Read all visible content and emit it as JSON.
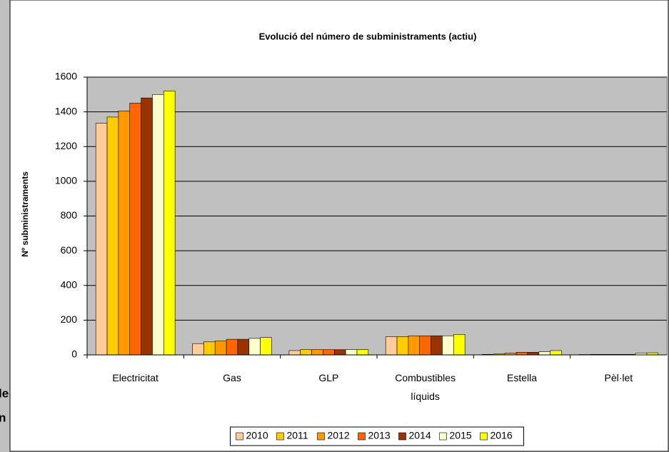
{
  "background_text": [
    "le",
    "n"
  ],
  "chart_data": {
    "type": "bar",
    "title": "Evolució del número de subministraments (actiu)",
    "y_label": "Nº subministraments",
    "categories": [
      "Electricitat",
      "Gas",
      "GLP",
      "Combustibles líquids",
      "Estella",
      "Pèl·let"
    ],
    "series": [
      {
        "name": "2010",
        "color": "#ffcc99",
        "values": [
          1335,
          65,
          25,
          105,
          3,
          2
        ]
      },
      {
        "name": "2011",
        "color": "#ffcc00",
        "values": [
          1370,
          75,
          30,
          105,
          5,
          3
        ]
      },
      {
        "name": "2012",
        "color": "#ff9900",
        "values": [
          1405,
          80,
          30,
          110,
          10,
          3
        ]
      },
      {
        "name": "2013",
        "color": "#ff6600",
        "values": [
          1450,
          90,
          30,
          110,
          15,
          3
        ]
      },
      {
        "name": "2014",
        "color": "#993300",
        "values": [
          1480,
          90,
          30,
          110,
          15,
          3
        ]
      },
      {
        "name": "2015",
        "color": "#ffffcc",
        "values": [
          1500,
          95,
          30,
          110,
          18,
          10
        ]
      },
      {
        "name": "2016",
        "color": "#ffff00",
        "values": [
          1520,
          100,
          30,
          118,
          25,
          12
        ]
      }
    ],
    "ylim": [
      0,
      1600
    ],
    "yticks": [
      0,
      200,
      400,
      600,
      800,
      1000,
      1200,
      1400,
      1600
    ],
    "grid": true,
    "legend": "bottom",
    "plot_background": "#c0c0c0"
  }
}
